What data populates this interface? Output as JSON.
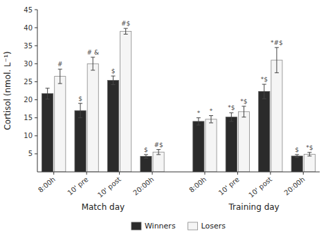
{
  "chart_data": {
    "type": "bar",
    "ylabel": "Cortisol (nmol. L⁻¹)",
    "groups": [
      {
        "name": "Match day",
        "categories": [
          "8:00h",
          "10' pre",
          "10' post",
          "20:00h"
        ]
      },
      {
        "name": "Training day",
        "categories": [
          "8:00h",
          "10' pre",
          "10' post",
          "20:00h"
        ]
      }
    ],
    "series": [
      {
        "name": "Winners",
        "color": "#2b2b2b",
        "values": [
          21.7,
          17.0,
          25.4,
          4.3,
          14.0,
          15.2,
          22.3,
          4.4
        ],
        "errors": [
          1.5,
          2.0,
          1.2,
          0.5,
          1.0,
          1.2,
          2.0,
          0.4
        ],
        "annotations": [
          null,
          "$",
          "$",
          "$",
          "*",
          "*$",
          "*$",
          "$"
        ]
      },
      {
        "name": "Losers",
        "color": "#f5f5f5",
        "values": [
          26.5,
          30.0,
          39.0,
          5.5,
          14.6,
          16.7,
          31.0,
          4.9
        ],
        "errors": [
          2.0,
          1.8,
          0.8,
          0.7,
          1.0,
          1.5,
          3.5,
          0.5
        ],
        "annotations": [
          "#",
          "# &",
          "#$",
          "#$",
          "*",
          "*$",
          "*#$",
          "*$"
        ]
      }
    ],
    "ylim": [
      0,
      45
    ],
    "yticks": [
      5,
      10,
      15,
      20,
      25,
      30,
      35,
      40,
      45
    ],
    "grid": false,
    "legend": "bottom"
  }
}
